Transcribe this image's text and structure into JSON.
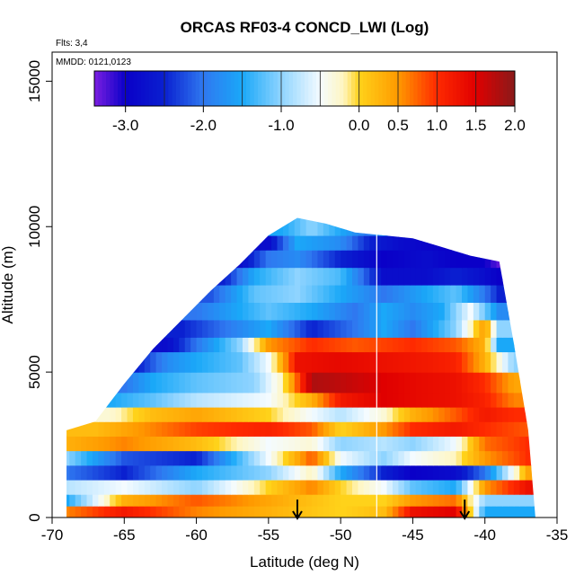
{
  "chart_data": {
    "type": "heatmap",
    "title": "ORCAS RF03-4 CONCD_LWI (Log)",
    "flights_label": "Flts: 3,4",
    "date_label": "MMDD: 0121,0123",
    "xlabel": "Latitude (deg N)",
    "ylabel": "Altitude (m)",
    "xlim": [
      -70,
      -35
    ],
    "ylim": [
      0,
      16000
    ],
    "x_ticks": [
      -70,
      -65,
      -60,
      -55,
      -50,
      -45,
      -40,
      -35
    ],
    "y_ticks": [
      0,
      5000,
      10000,
      15000
    ],
    "colorbar": {
      "range": [
        -3.4,
        2.0
      ],
      "tick_values": [
        -3.0,
        -2.0,
        -1.0,
        0.0,
        0.5,
        1.0,
        1.5,
        2.0
      ],
      "tick_labels": [
        "-3.0",
        "-2.0",
        "-1.0",
        "0.0",
        "0.5",
        "1.0",
        "1.5",
        "2.0"
      ],
      "stops": [
        {
          "v": -3.4,
          "color": "#7b1fe0"
        },
        {
          "v": -3.0,
          "color": "#0a00c8"
        },
        {
          "v": -2.5,
          "color": "#0a20d0"
        },
        {
          "v": -2.0,
          "color": "#2f78f0"
        },
        {
          "v": -1.5,
          "color": "#1aa8f8"
        },
        {
          "v": -1.0,
          "color": "#8fd4ff"
        },
        {
          "v": -0.5,
          "color": "#f4fbff"
        },
        {
          "v": -0.2,
          "color": "#fff6c0"
        },
        {
          "v": 0.0,
          "color": "#ffd21a"
        },
        {
          "v": 0.5,
          "color": "#ff9a00"
        },
        {
          "v": 1.0,
          "color": "#ff2a00"
        },
        {
          "v": 1.5,
          "color": "#e00000"
        },
        {
          "v": 2.0,
          "color": "#8a1a1a"
        }
      ]
    },
    "envelope": [
      {
        "lat": -69.0,
        "alt_min": 0,
        "alt_max": 3000
      },
      {
        "lat": -67.0,
        "alt_min": 0,
        "alt_max": 3300
      },
      {
        "lat": -65.0,
        "alt_min": 0,
        "alt_max": 4600
      },
      {
        "lat": -63.0,
        "alt_min": 0,
        "alt_max": 5800
      },
      {
        "lat": -61.0,
        "alt_min": 0,
        "alt_max": 6800
      },
      {
        "lat": -59.0,
        "alt_min": 0,
        "alt_max": 7800
      },
      {
        "lat": -57.0,
        "alt_min": 0,
        "alt_max": 8700
      },
      {
        "lat": -55.0,
        "alt_min": 0,
        "alt_max": 9700
      },
      {
        "lat": -53.0,
        "alt_min": 0,
        "alt_max": 10300
      },
      {
        "lat": -51.0,
        "alt_min": 0,
        "alt_max": 10100
      },
      {
        "lat": -49.0,
        "alt_min": 0,
        "alt_max": 9800
      },
      {
        "lat": -47.0,
        "alt_min": 0,
        "alt_max": 9700
      },
      {
        "lat": -45.0,
        "alt_min": 0,
        "alt_max": 9600
      },
      {
        "lat": -43.0,
        "alt_min": 0,
        "alt_max": 9300
      },
      {
        "lat": -41.0,
        "alt_min": 0,
        "alt_max": 9000
      },
      {
        "lat": -39.0,
        "alt_min": 0,
        "alt_max": 8800
      },
      {
        "lat": -38.0,
        "alt_min": 0,
        "alt_max": 6000
      },
      {
        "lat": -37.0,
        "alt_min": 0,
        "alt_max": 3000
      },
      {
        "lat": -36.5,
        "alt_min": 0,
        "alt_max": 0
      }
    ],
    "layers": [
      {
        "alt": [
          0,
          400
        ],
        "value_by_lat": [
          [
            -69,
            0.6
          ],
          [
            -65,
            1.2
          ],
          [
            -60,
            0.6
          ],
          [
            -55,
            0.3
          ],
          [
            -50,
            0.0
          ],
          [
            -47,
            0.2
          ],
          [
            -45,
            1.3
          ],
          [
            -42,
            1.5
          ],
          [
            -40,
            -1.5
          ],
          [
            -37,
            -1.5
          ]
        ]
      },
      {
        "alt": [
          400,
          800
        ],
        "value_by_lat": [
          [
            -69,
            -1.5
          ],
          [
            -65,
            0.3
          ],
          [
            -60,
            0.8
          ],
          [
            -55,
            0.4
          ],
          [
            -50,
            0.0
          ],
          [
            -47,
            0.0
          ],
          [
            -45,
            0.5
          ],
          [
            -42,
            0.7
          ],
          [
            -40,
            -1.0
          ],
          [
            -37,
            -1.0
          ]
        ]
      },
      {
        "alt": [
          800,
          1300
        ],
        "value_by_lat": [
          [
            -69,
            -0.8
          ],
          [
            -65,
            -0.5
          ],
          [
            -60,
            -1.0
          ],
          [
            -55,
            0.0
          ],
          [
            -52,
            0.6
          ],
          [
            -50,
            0.0
          ],
          [
            -47,
            -0.5
          ],
          [
            -45,
            -1.2
          ],
          [
            -42,
            -1.5
          ],
          [
            -40,
            0.5
          ],
          [
            -37,
            1.3
          ]
        ]
      },
      {
        "alt": [
          1300,
          1800
        ],
        "value_by_lat": [
          [
            -69,
            -2.0
          ],
          [
            -65,
            -2.5
          ],
          [
            -60,
            -1.5
          ],
          [
            -55,
            -1.0
          ],
          [
            -52,
            -0.2
          ],
          [
            -50,
            -1.5
          ],
          [
            -47,
            -2.5
          ],
          [
            -45,
            -3.0
          ],
          [
            -42,
            -2.8
          ],
          [
            -40,
            -2.0
          ],
          [
            -37,
            0.4
          ]
        ]
      },
      {
        "alt": [
          1800,
          2300
        ],
        "value_by_lat": [
          [
            -69,
            -1.0
          ],
          [
            -65,
            -2.2
          ],
          [
            -60,
            -2.5
          ],
          [
            -55,
            -0.5
          ],
          [
            -52,
            0.8
          ],
          [
            -50,
            -0.5
          ],
          [
            -47,
            -1.0
          ],
          [
            -45,
            -0.5
          ],
          [
            -42,
            -0.2
          ],
          [
            -40,
            0.5
          ],
          [
            -37,
            1.0
          ]
        ]
      },
      {
        "alt": [
          2300,
          2800
        ],
        "value_by_lat": [
          [
            -69,
            0.3
          ],
          [
            -65,
            0.6
          ],
          [
            -60,
            0.2
          ],
          [
            -55,
            -0.5
          ],
          [
            -52,
            -0.3
          ],
          [
            -50,
            -1.0
          ],
          [
            -47,
            -0.8
          ],
          [
            -45,
            -1.0
          ],
          [
            -42,
            -0.5
          ],
          [
            -40,
            0.7
          ],
          [
            -37,
            1.0
          ]
        ]
      },
      {
        "alt": [
          2800,
          3300
        ],
        "value_by_lat": [
          [
            -67,
            0.2
          ],
          [
            -63,
            0.6
          ],
          [
            -60,
            0.9
          ],
          [
            -55,
            1.1
          ],
          [
            -52,
            0.8
          ],
          [
            -50,
            0.0
          ],
          [
            -47,
            0.5
          ],
          [
            -45,
            1.0
          ],
          [
            -42,
            1.2
          ],
          [
            -40,
            1.0
          ],
          [
            -37,
            0.8
          ]
        ]
      },
      {
        "alt": [
          3300,
          3800
        ],
        "value_by_lat": [
          [
            -66,
            -0.3
          ],
          [
            -63,
            0.2
          ],
          [
            -60,
            0.4
          ],
          [
            -55,
            0.0
          ],
          [
            -52,
            -0.5
          ],
          [
            -50,
            -0.8
          ],
          [
            -47,
            -0.3
          ],
          [
            -45,
            0.3
          ],
          [
            -42,
            0.8
          ],
          [
            -40,
            1.2
          ],
          [
            -38,
            1.0
          ]
        ]
      },
      {
        "alt": [
          3800,
          4300
        ],
        "value_by_lat": [
          [
            -66,
            -1.5
          ],
          [
            -63,
            -1.2
          ],
          [
            -60,
            -0.8
          ],
          [
            -55,
            -0.5
          ],
          [
            -52,
            0.3
          ],
          [
            -50,
            1.2
          ],
          [
            -47,
            1.5
          ],
          [
            -45,
            1.4
          ],
          [
            -42,
            1.3
          ],
          [
            -40,
            1.1
          ],
          [
            -38,
            0.6
          ]
        ]
      },
      {
        "alt": [
          4300,
          5000
        ],
        "value_by_lat": [
          [
            -65,
            -2.0
          ],
          [
            -63,
            -1.5
          ],
          [
            -60,
            -1.2
          ],
          [
            -56,
            -1.0
          ],
          [
            -54,
            -0.2
          ],
          [
            -52,
            1.8
          ],
          [
            -50,
            1.7
          ],
          [
            -47,
            1.5
          ],
          [
            -45,
            1.4
          ],
          [
            -42,
            1.3
          ],
          [
            -40,
            1.0
          ],
          [
            -38,
            0.4
          ]
        ]
      },
      {
        "alt": [
          5000,
          5700
        ],
        "value_by_lat": [
          [
            -64,
            -2.5
          ],
          [
            -62,
            -1.8
          ],
          [
            -60,
            -1.5
          ],
          [
            -57,
            -1.2
          ],
          [
            -55,
            -0.5
          ],
          [
            -53,
            1.3
          ],
          [
            -50,
            1.4
          ],
          [
            -47,
            1.3
          ],
          [
            -44,
            1.2
          ],
          [
            -42,
            1.1
          ],
          [
            -40,
            0.3
          ],
          [
            -38,
            -1.0
          ]
        ]
      },
      {
        "alt": [
          5700,
          6200
        ],
        "value_by_lat": [
          [
            -62,
            -2.8
          ],
          [
            -60,
            -2.0
          ],
          [
            -57,
            -1.0
          ],
          [
            -55,
            0.5
          ],
          [
            -52,
            1.0
          ],
          [
            -49,
            0.8
          ],
          [
            -47,
            0.9
          ],
          [
            -45,
            1.0
          ],
          [
            -42,
            0.8
          ],
          [
            -40,
            0.3
          ],
          [
            -39,
            -1.5
          ]
        ]
      },
      {
        "alt": [
          6200,
          6800
        ],
        "value_by_lat": [
          [
            -61,
            -2.5
          ],
          [
            -58,
            -2.0
          ],
          [
            -55,
            -1.5
          ],
          [
            -52,
            -2.5
          ],
          [
            -49,
            -2.0
          ],
          [
            -47,
            -1.5
          ],
          [
            -45,
            -2.0
          ],
          [
            -42,
            -1.0
          ],
          [
            -40,
            0.5
          ],
          [
            -39,
            -1.0
          ]
        ]
      },
      {
        "alt": [
          6800,
          7400
        ],
        "value_by_lat": [
          [
            -60,
            -2.0
          ],
          [
            -57,
            -1.5
          ],
          [
            -55,
            -1.2
          ],
          [
            -52,
            -1.5
          ],
          [
            -49,
            -2.0
          ],
          [
            -47,
            -1.5
          ],
          [
            -45,
            -1.8
          ],
          [
            -43,
            -1.5
          ],
          [
            -41,
            -0.5
          ],
          [
            -39,
            -1.8
          ]
        ]
      },
      {
        "alt": [
          7400,
          8000
        ],
        "value_by_lat": [
          [
            -59,
            -2.2
          ],
          [
            -56,
            -1.2
          ],
          [
            -53,
            -1.0
          ],
          [
            -50,
            -1.5
          ],
          [
            -47,
            -2.0
          ],
          [
            -44,
            -1.5
          ],
          [
            -42,
            -1.2
          ],
          [
            -40,
            -2.0
          ],
          [
            -39,
            -2.5
          ]
        ]
      },
      {
        "alt": [
          8000,
          8600
        ],
        "value_by_lat": [
          [
            -58,
            -2.5
          ],
          [
            -56,
            -1.5
          ],
          [
            -53,
            -1.0
          ],
          [
            -50,
            -1.3
          ],
          [
            -47,
            -2.8
          ],
          [
            -44,
            -2.8
          ],
          [
            -42,
            -2.5
          ],
          [
            -40,
            -2.8
          ],
          [
            -39,
            -3.0
          ]
        ]
      },
      {
        "alt": [
          8600,
          9200
        ],
        "value_by_lat": [
          [
            -57,
            -2.8
          ],
          [
            -55,
            -2.0
          ],
          [
            -53,
            -1.8
          ],
          [
            -50,
            -2.5
          ],
          [
            -47,
            -3.0
          ],
          [
            -44,
            -2.8
          ],
          [
            -42,
            -3.0
          ],
          [
            -40,
            -3.0
          ],
          [
            -39,
            -3.3
          ]
        ]
      },
      {
        "alt": [
          9200,
          9700
        ],
        "value_by_lat": [
          [
            -55,
            -2.8
          ],
          [
            -53,
            -1.5
          ],
          [
            -50,
            -1.8
          ],
          [
            -48,
            -2.5
          ],
          [
            -46,
            -2.8
          ],
          [
            -43,
            -3.0
          ]
        ]
      },
      {
        "alt": [
          9700,
          10300
        ],
        "value_by_lat": [
          [
            -54,
            -1.5
          ],
          [
            -52,
            -1.0
          ],
          [
            -50,
            -1.5
          ],
          [
            -48,
            -2.0
          ],
          [
            -47,
            -1.5
          ]
        ]
      }
    ],
    "flight_track_marks_lat": [
      -53,
      -41.4
    ],
    "divider_lat": -47.5
  }
}
